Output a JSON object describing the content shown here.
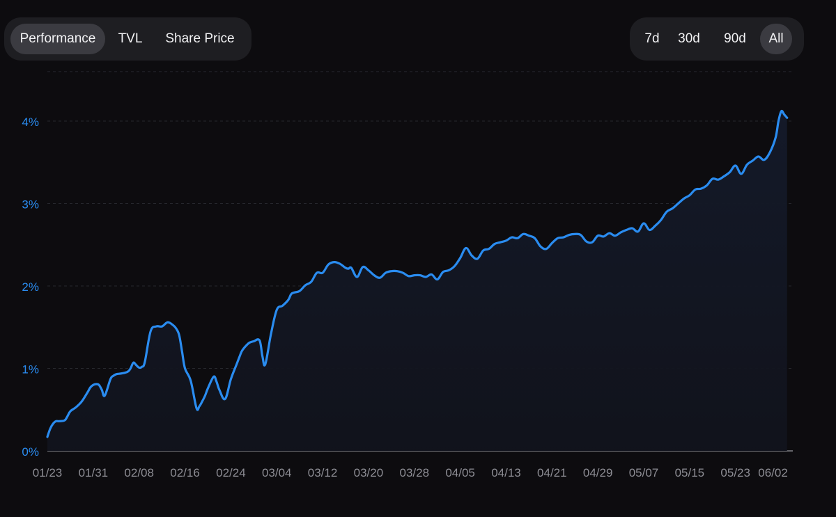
{
  "tabs": {
    "items": [
      {
        "label": "Performance",
        "active": true
      },
      {
        "label": "TVL",
        "active": false
      },
      {
        "label": "Share Price",
        "active": false
      }
    ]
  },
  "ranges": {
    "items": [
      {
        "label": "7d",
        "active": false
      },
      {
        "label": "30d",
        "active": false
      },
      {
        "label": "90d",
        "active": false
      },
      {
        "label": "All",
        "active": true
      }
    ]
  },
  "colors": {
    "background": "#0d0c0f",
    "line": "#2a8cf0",
    "area": "#131722",
    "ytick": "#2a8cf0",
    "xtick": "#8d8d94",
    "grid": "#26272d",
    "baseline": "#9a9aa0"
  },
  "chart_data": {
    "type": "area",
    "title": "",
    "xlabel": "",
    "ylabel": "",
    "ylim": [
      0,
      4.6
    ],
    "y_ticks": [
      "0%",
      "1%",
      "2%",
      "3%",
      "4%"
    ],
    "y_tick_values": [
      0,
      1,
      2,
      3,
      4
    ],
    "x_ticks": [
      "01/23",
      "01/31",
      "02/08",
      "02/16",
      "02/24",
      "03/04",
      "03/12",
      "03/20",
      "03/28",
      "04/05",
      "04/13",
      "04/21",
      "04/29",
      "05/07",
      "05/15",
      "05/23",
      "06/02"
    ],
    "x_tick_days": [
      0,
      8,
      16,
      24,
      32,
      40,
      48,
      56,
      64,
      72,
      80,
      88,
      96,
      104,
      112,
      120,
      128
    ],
    "x_max_days": 130,
    "grid": true,
    "legend": "none",
    "series": [
      {
        "x": [
          0,
          0.5,
          1,
          1.5,
          2,
          3,
          3.5,
          4,
          5,
          6,
          7,
          7.5,
          8,
          8.5,
          9,
          9.5,
          10,
          11,
          11.5,
          12,
          13,
          14,
          14.5,
          15,
          15.5,
          16,
          16.5,
          17,
          18,
          19,
          20,
          21,
          22,
          22.5,
          23,
          23.5,
          24,
          25,
          26,
          26.5,
          27,
          27.5,
          28,
          29,
          29.5,
          30,
          31,
          32,
          33,
          33.5,
          34,
          35,
          35.5,
          36,
          37,
          37.5,
          38,
          39,
          40,
          41,
          42,
          42.5,
          43,
          44,
          45,
          46,
          47,
          48,
          49,
          50,
          51,
          52,
          52.5,
          53,
          54,
          55,
          56,
          57,
          58,
          59,
          60,
          61,
          62,
          63,
          64,
          65,
          66,
          67,
          68,
          69,
          70,
          71,
          72,
          73,
          74,
          75,
          76,
          77,
          78,
          79,
          80,
          81,
          82,
          83,
          84,
          85,
          86,
          87,
          88,
          89,
          90,
          91,
          92,
          93,
          94,
          95,
          96,
          97,
          98,
          99,
          100,
          101,
          102,
          103,
          104,
          105,
          106,
          107,
          108,
          109,
          110,
          111,
          112,
          113,
          114,
          115,
          116,
          117,
          118,
          119,
          120,
          121,
          122,
          123,
          124,
          125,
          126,
          127,
          127.5,
          128,
          128.5,
          129
        ],
        "values": [
          0.17,
          0.27,
          0.33,
          0.36,
          0.36,
          0.37,
          0.42,
          0.48,
          0.53,
          0.6,
          0.71,
          0.77,
          0.8,
          0.81,
          0.8,
          0.74,
          0.67,
          0.87,
          0.91,
          0.93,
          0.94,
          0.96,
          1.0,
          1.07,
          1.04,
          1.01,
          1.02,
          1.08,
          1.45,
          1.51,
          1.51,
          1.56,
          1.52,
          1.48,
          1.4,
          1.2,
          1.0,
          0.85,
          0.52,
          0.54,
          0.6,
          0.67,
          0.76,
          0.9,
          0.84,
          0.74,
          0.63,
          0.87,
          1.05,
          1.14,
          1.22,
          1.3,
          1.32,
          1.33,
          1.34,
          1.15,
          1.05,
          1.42,
          1.71,
          1.76,
          1.83,
          1.9,
          1.92,
          1.94,
          2.01,
          2.05,
          2.16,
          2.16,
          2.26,
          2.29,
          2.27,
          2.22,
          2.21,
          2.22,
          2.11,
          2.23,
          2.19,
          2.13,
          2.1,
          2.16,
          2.18,
          2.18,
          2.16,
          2.12,
          2.13,
          2.13,
          2.11,
          2.14,
          2.08,
          2.17,
          2.19,
          2.24,
          2.34,
          2.46,
          2.37,
          2.33,
          2.43,
          2.45,
          2.51,
          2.53,
          2.55,
          2.59,
          2.58,
          2.63,
          2.61,
          2.58,
          2.48,
          2.45,
          2.52,
          2.58,
          2.59,
          2.62,
          2.63,
          2.62,
          2.54,
          2.53,
          2.61,
          2.6,
          2.64,
          2.61,
          2.65,
          2.68,
          2.7,
          2.66,
          2.76,
          2.68,
          2.73,
          2.8,
          2.9,
          2.94,
          3.0,
          3.06,
          3.1,
          3.17,
          3.18,
          3.22,
          3.3,
          3.29,
          3.33,
          3.38,
          3.46,
          3.36,
          3.47,
          3.52,
          3.57,
          3.53,
          3.62,
          3.8,
          4.0,
          4.12,
          4.08,
          4.04
        ]
      }
    ]
  }
}
